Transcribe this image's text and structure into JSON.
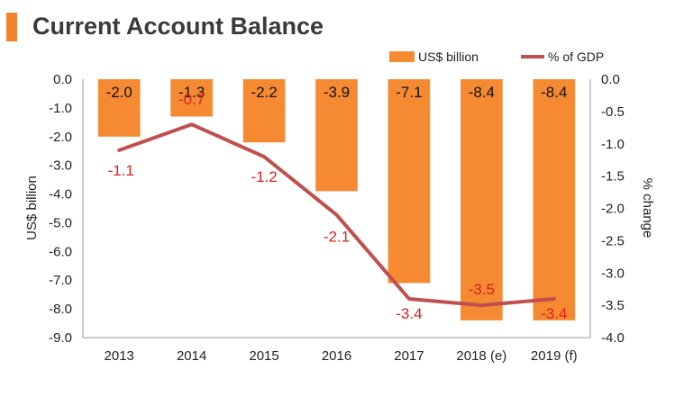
{
  "title": "Current Account Balance",
  "colors": {
    "bar": "#f58a32",
    "line": "#c0504d",
    "line_label": "#e02020",
    "accent": "#f0832c"
  },
  "chart_data": {
    "type": "bar",
    "title": "Current Account Balance",
    "categories": [
      "2013",
      "2014",
      "2015",
      "2016",
      "2017",
      "2018 (e)",
      "2019 (f)"
    ],
    "series": [
      {
        "name": "US$ billion",
        "type": "bar",
        "axis": "left",
        "values": [
          -2.0,
          -1.3,
          -2.2,
          -3.9,
          -7.1,
          -8.4,
          -8.4
        ],
        "labels": [
          "-2.0",
          "-1.3",
          "-2.2",
          "-3.9",
          "-7.1",
          "-8.4",
          "-8.4"
        ]
      },
      {
        "name": "% of GDP",
        "type": "line",
        "axis": "right",
        "values": [
          -1.1,
          -0.7,
          -1.2,
          -2.1,
          -3.4,
          -3.5,
          -3.4
        ],
        "labels": [
          "-1.1",
          "-0.7",
          "-1.2",
          "-2.1",
          "-3.4",
          "-3.5",
          "-3.4"
        ]
      }
    ],
    "ylabel": "US$ billion",
    "y2label": "% change",
    "ylim": [
      -9,
      0
    ],
    "y2lim": [
      -4,
      0
    ],
    "yticks": [
      "0.0",
      "-1.0",
      "-2.0",
      "-3.0",
      "-4.0",
      "-5.0",
      "-6.0",
      "-7.0",
      "-8.0",
      "-9.0"
    ],
    "y2ticks": [
      "0.0",
      "-0.5",
      "-1.0",
      "-1.5",
      "-2.0",
      "-2.5",
      "-3.0",
      "-3.5",
      "-4.0"
    ],
    "grid": false,
    "legend": "top-right"
  }
}
